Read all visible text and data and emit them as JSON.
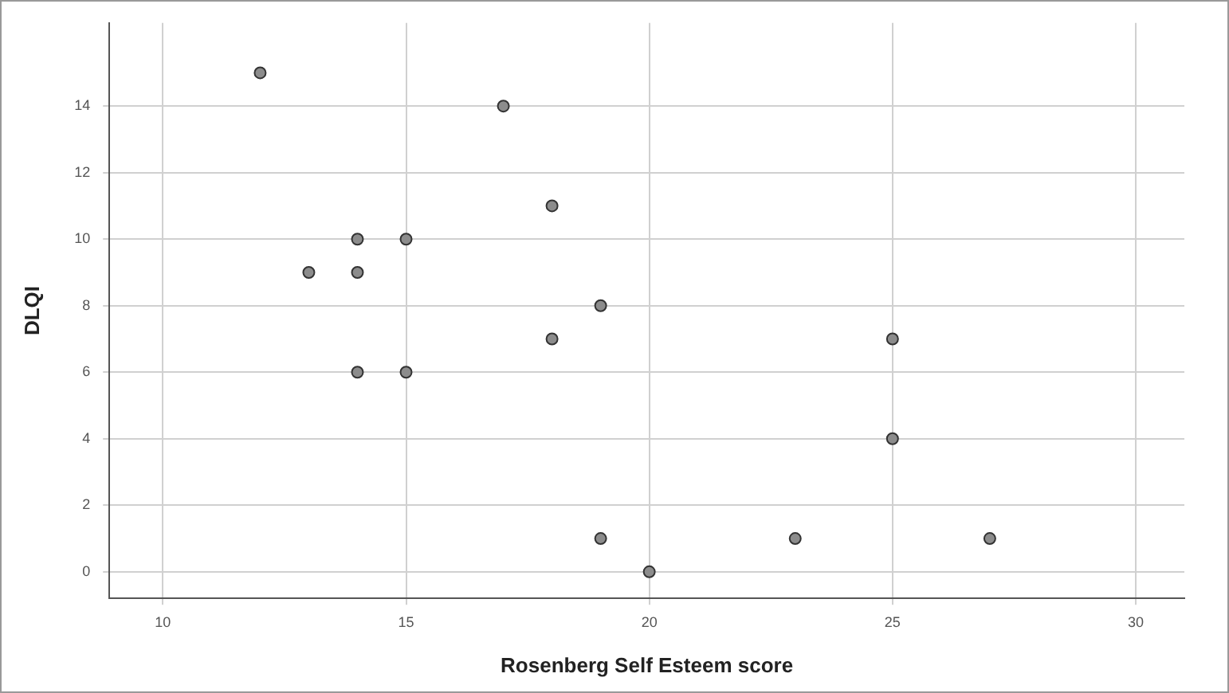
{
  "chart_data": {
    "type": "scatter",
    "xlabel": "Rosenberg Self Esteem score",
    "ylabel": "DLQI",
    "x": [
      12,
      17,
      18,
      14,
      15,
      13,
      14,
      19,
      18,
      25,
      14,
      15,
      25,
      19,
      23,
      27,
      20
    ],
    "values": [
      15,
      14,
      11,
      10,
      10,
      9,
      9,
      8,
      7,
      7,
      6,
      6,
      4,
      1,
      1,
      1,
      0
    ],
    "color": "#8c8c8c",
    "marker": "circle",
    "xlim": [
      8.9,
      31
    ],
    "xticks": [
      10,
      15,
      20,
      25,
      30
    ],
    "ylim": [
      -0.8,
      16.5
    ],
    "yticks": [
      0,
      2,
      4,
      6,
      8,
      10,
      12,
      14
    ],
    "grid": true,
    "legend": false
  }
}
